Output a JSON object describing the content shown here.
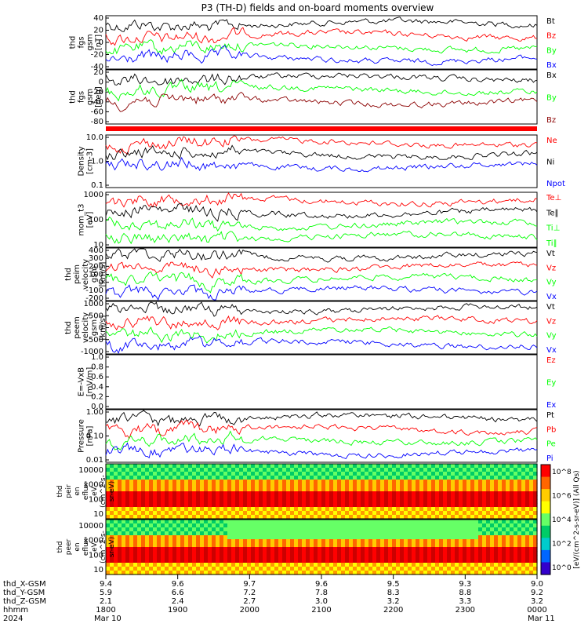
{
  "title": "P3 (TH-D) fields and on-board moments overview",
  "colors": {
    "black": "#000000",
    "red": "#ff0000",
    "green": "#00ff00",
    "blue": "#0000ff",
    "darkred": "#8b0000"
  },
  "chart_data": {
    "type": "line",
    "x_axis": {
      "start_label": "1800",
      "end_label": "0000",
      "hhmm_ticks": [
        "1800",
        "1900",
        "2000",
        "2100",
        "2200",
        "2300",
        "0000"
      ],
      "x_gsm_ticks": [
        "9.4",
        "9.6",
        "9.7",
        "9.6",
        "9.5",
        "9.3",
        "9.0"
      ],
      "y_gsm_ticks": [
        "5.9",
        "6.6",
        "7.2",
        "7.8",
        "8.3",
        "8.8",
        "9.2"
      ],
      "z_gsm_ticks": [
        "2.1",
        "2.4",
        "2.7",
        "3.0",
        "3.2",
        "3.3",
        "3.2"
      ],
      "row_labels": [
        "thd_X-GSM",
        "thd_Y-GSM",
        "thd_Z-GSM",
        "hhmm",
        "2024"
      ],
      "date_labels": [
        "Mar 10",
        "Mar 11"
      ]
    },
    "panels": [
      {
        "id": "fgs_gsm",
        "ylabel_lines": [
          "thd",
          "fgs",
          "gsm",
          "[nT]"
        ],
        "yticks": [
          "40",
          "20",
          "0",
          "-20",
          "-40"
        ],
        "ylim": [
          -40,
          50
        ],
        "series": [
          {
            "name": "Bt",
            "color": "#000000"
          },
          {
            "name": "Bz",
            "color": "#ff0000"
          },
          {
            "name": "By",
            "color": "#00ff00"
          },
          {
            "name": "Bx",
            "color": "#0000ff"
          }
        ]
      },
      {
        "id": "fgs_gsm_clock",
        "ylabel_lines": [
          "thd",
          "fgs",
          "gsm",
          "[deg]"
        ],
        "yticks": [
          "20",
          "0",
          "-20",
          "-40",
          "-60",
          "-80"
        ],
        "ylim": [
          -90,
          30
        ],
        "series": [
          {
            "name": "Bx",
            "color": "#000000"
          },
          {
            "name": "By",
            "color": "#00ff00"
          },
          {
            "name": "Bz",
            "color": "#8b0000"
          }
        ]
      },
      {
        "id": "density",
        "ylabel_lines": [
          "Density",
          "[cm-3]"
        ],
        "yticks": [
          "10.0",
          "1.0",
          "0.1"
        ],
        "scale": "log",
        "ylim": [
          0.1,
          50
        ],
        "series": [
          {
            "name": "Ne",
            "color": "#ff0000"
          },
          {
            "name": "Ni",
            "color": "#000000"
          },
          {
            "name": "Npot",
            "color": "#0000ff"
          }
        ]
      },
      {
        "id": "temperature",
        "ylabel_lines": [
          "mom_t3",
          "[eV]"
        ],
        "yticks": [
          "1000",
          "100",
          "10"
        ],
        "scale": "log",
        "ylim": [
          8,
          5000
        ],
        "series": [
          {
            "name": "Te⊥",
            "color": "#ff0000"
          },
          {
            "name": "Te∥",
            "color": "#000000"
          },
          {
            "name": "Ti⊥",
            "color": "#00ff00"
          },
          {
            "name": "Ti∥",
            "color": "#00ff00"
          }
        ]
      },
      {
        "id": "ion_velocity",
        "ylabel_lines": [
          "thd",
          "peim",
          "velocity",
          "gsm",
          "[km/s]"
        ],
        "yticks": [
          "400",
          "300",
          "200",
          "100",
          "0",
          "-100",
          "-200"
        ],
        "ylim": [
          -200,
          450
        ],
        "series": [
          {
            "name": "Vt",
            "color": "#000000"
          },
          {
            "name": "Vz",
            "color": "#ff0000"
          },
          {
            "name": "Vy",
            "color": "#00ff00"
          },
          {
            "name": "Vx",
            "color": "#0000ff"
          }
        ]
      },
      {
        "id": "electron_velocity",
        "ylabel_lines": [
          "thd",
          "peem",
          "velocity",
          "gsm",
          "[km/s]"
        ],
        "yticks": [
          "1000",
          "500",
          "0",
          "-500",
          "-1000"
        ],
        "ylim": [
          -1000,
          1100
        ],
        "series": [
          {
            "name": "Vt",
            "color": "#000000"
          },
          {
            "name": "Vz",
            "color": "#ff0000"
          },
          {
            "name": "Vy",
            "color": "#00ff00"
          },
          {
            "name": "Vx",
            "color": "#0000ff"
          }
        ]
      },
      {
        "id": "efield",
        "ylabel_lines": [
          "E=-VxB",
          "[mV/m]"
        ],
        "yticks": [
          "1.0",
          "0.8",
          "0.6",
          "0.4",
          "0.2",
          "0.0"
        ],
        "ylim": [
          0,
          1
        ],
        "series": [
          {
            "name": "Ez",
            "color": "#ff0000"
          },
          {
            "name": "Ey",
            "color": "#00ff00"
          },
          {
            "name": "Ex",
            "color": "#0000ff"
          }
        ]
      },
      {
        "id": "pressure",
        "ylabel_lines": [
          "Pressure",
          "[nPa]"
        ],
        "yticks": [
          "1.00",
          "0.10",
          "0.01"
        ],
        "scale": "log",
        "ylim": [
          0.002,
          1.2
        ],
        "series": [
          {
            "name": "Pt",
            "color": "#000000"
          },
          {
            "name": "Pb",
            "color": "#ff0000"
          },
          {
            "name": "Pe",
            "color": "#00ff00"
          },
          {
            "name": "Pi",
            "color": "#0000ff"
          }
        ]
      },
      {
        "id": "ion_spec",
        "type": "heatmap",
        "ylabel_lines": [
          "thd",
          "peir",
          "en",
          "eflux",
          "eV",
          "(cm^2-s-",
          "sr-eV)"
        ],
        "yticks": [
          "10000",
          "1000",
          "100",
          "10"
        ]
      },
      {
        "id": "electron_spec",
        "type": "heatmap",
        "ylabel_lines": [
          "thd",
          "peer",
          "en",
          "eflux",
          "eV",
          "(cm^2-s-",
          "sr-eV)"
        ],
        "yticks": [
          "10000",
          "1000",
          "100",
          "10"
        ]
      }
    ],
    "colorbar": {
      "label": "[eV/(cm^2-s-sr-eV)] (All Qs)",
      "ticks": [
        "10^8",
        "10^6",
        "10^4",
        "10^2",
        "10^0"
      ]
    }
  }
}
